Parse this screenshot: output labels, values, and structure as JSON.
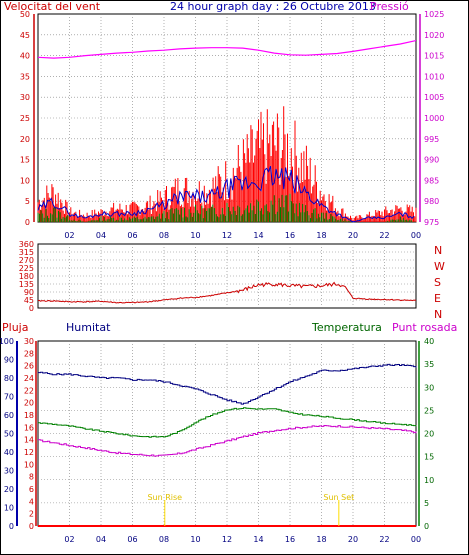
{
  "top_header": {
    "left_label": "Velocitat del vent",
    "title": "24 hour graph day : 26 Octubre 2013",
    "right_label": "Pressió"
  },
  "bottom_header": {
    "rain_label": "Pluja",
    "humidity_label": "Humitat",
    "temperature_label": "Temperatura",
    "dewpoint_label": "Punt rosada"
  },
  "colors": {
    "wind": "#ff0000",
    "gust": "#0000cc",
    "avg_wind": "#008000",
    "pressure": "#ff00ff",
    "direction": "#cc0000",
    "humidity": "#000080",
    "temperature": "#008000",
    "dewpoint": "#cc00cc",
    "rain": "#ff0000",
    "grid": "#808080",
    "sun": "#ffdd00"
  },
  "x_tick_labels": [
    "02",
    "04",
    "06",
    "08",
    "10",
    "12",
    "14",
    "16",
    "18",
    "20",
    "22",
    "00"
  ],
  "sun_events": [
    {
      "label": "Sun Rise",
      "hour": 8.05
    },
    {
      "label": "Sun Set",
      "hour": 19.1
    }
  ],
  "chart_data": [
    {
      "type": "line",
      "name": "wind-pressure",
      "x_unit": "hour",
      "xlim": [
        0,
        24
      ],
      "y_left": {
        "label": "Velocitat del vent",
        "ticks": [
          0,
          5,
          10,
          15,
          20,
          25,
          30,
          35,
          40,
          45,
          50
        ],
        "ylim": [
          0,
          50
        ]
      },
      "y_right": {
        "label": "Pressió",
        "ticks": [
          975,
          980,
          985,
          990,
          995,
          1000,
          1005,
          1010,
          1015,
          1020,
          1025
        ],
        "ylim": [
          975,
          1025
        ]
      },
      "series": [
        {
          "name": "Pressió",
          "axis": "right",
          "x": [
            0,
            1,
            2,
            3,
            4,
            5,
            6,
            7,
            8,
            9,
            10,
            11,
            12,
            13,
            14,
            15,
            16,
            17,
            18,
            19,
            20,
            21,
            22,
            23,
            24
          ],
          "values": [
            1014.6,
            1014.4,
            1014.6,
            1015.0,
            1015.3,
            1015.6,
            1015.8,
            1016.1,
            1016.3,
            1016.6,
            1016.8,
            1016.9,
            1016.9,
            1016.8,
            1016.3,
            1015.6,
            1015.2,
            1015.1,
            1015.3,
            1015.5,
            1016.0,
            1016.6,
            1017.2,
            1017.8,
            1018.6
          ]
        },
        {
          "name": "gust",
          "axis": "left",
          "x": [
            0,
            1,
            2,
            3,
            4,
            5,
            6,
            7,
            8,
            9,
            10,
            11,
            12,
            13,
            14,
            15,
            16,
            17,
            18,
            19,
            20,
            21,
            22,
            23,
            24
          ],
          "values": [
            6,
            9,
            3,
            2,
            3,
            4,
            4,
            5,
            7,
            10,
            9,
            10,
            13,
            17,
            21,
            23,
            22,
            16,
            9,
            4,
            1,
            2,
            3,
            4,
            3
          ]
        },
        {
          "name": "wind",
          "axis": "left",
          "x": [
            0,
            1,
            2,
            3,
            4,
            5,
            6,
            7,
            8,
            9,
            10,
            11,
            12,
            13,
            14,
            15,
            16,
            17,
            18,
            19,
            20,
            21,
            22,
            23,
            24
          ],
          "values": [
            3,
            5,
            2,
            1,
            2,
            2,
            2,
            3,
            4,
            6,
            6,
            6,
            8,
            9,
            10,
            11,
            10,
            7,
            4,
            2,
            0,
            1,
            1,
            2,
            1
          ]
        },
        {
          "name": "avg",
          "axis": "left",
          "x": [
            0,
            1,
            2,
            3,
            4,
            5,
            6,
            7,
            8,
            9,
            10,
            11,
            12,
            13,
            14,
            15,
            16,
            17,
            18,
            19,
            20,
            21,
            22,
            23,
            24
          ],
          "values": [
            2,
            3,
            1,
            0,
            1,
            1,
            1,
            1,
            2,
            3,
            3,
            3,
            4,
            4,
            5,
            6,
            5,
            3,
            2,
            1,
            0,
            0,
            0,
            1,
            0
          ]
        }
      ]
    },
    {
      "type": "scatter",
      "name": "wind-direction",
      "x_unit": "hour",
      "xlim": [
        0,
        24
      ],
      "ylim": [
        0,
        360
      ],
      "y_ticks": [
        0,
        45,
        90,
        135,
        180,
        225,
        270,
        315,
        360
      ],
      "y_tick_labels": [
        "0",
        "45",
        "90",
        "135",
        "180",
        "225",
        "270",
        "315",
        "360"
      ],
      "right_labels": [
        "N",
        "W",
        "S",
        "E",
        "N"
      ],
      "series": [
        {
          "name": "direction",
          "x": [
            0,
            1,
            2,
            3,
            4,
            5,
            6,
            7,
            8,
            9,
            10,
            11,
            12,
            13,
            14,
            15,
            16,
            17,
            18,
            19,
            19.5,
            20,
            21,
            22,
            23,
            24
          ],
          "values": [
            40,
            40,
            35,
            35,
            38,
            30,
            30,
            35,
            45,
            55,
            60,
            70,
            85,
            100,
            130,
            135,
            125,
            120,
            125,
            135,
            120,
            55,
            50,
            48,
            45,
            42
          ]
        }
      ]
    },
    {
      "type": "line",
      "name": "temp-humidity",
      "x_unit": "hour",
      "xlim": [
        0,
        24
      ],
      "y_humidity": {
        "label": "Humitat",
        "ticks": [
          0,
          10,
          20,
          30,
          40,
          50,
          60,
          70,
          80,
          90,
          100
        ],
        "ylim": [
          0,
          100
        ]
      },
      "y_rain": {
        "label": "Pluja",
        "ticks": [
          0,
          2,
          4,
          6,
          8,
          10,
          12,
          14,
          16,
          18,
          20,
          22,
          24,
          26,
          28,
          30
        ],
        "ylim": [
          0,
          30
        ]
      },
      "y_temp": {
        "label": "Temperatura",
        "ticks": [
          0,
          5,
          10,
          15,
          20,
          25,
          30,
          35,
          40
        ],
        "ylim": [
          0,
          40
        ]
      },
      "series": [
        {
          "name": "Humitat",
          "x": [
            0,
            1,
            2,
            3,
            4,
            5,
            6,
            7,
            8,
            9,
            10,
            11,
            12,
            13,
            14,
            15,
            16,
            17,
            18,
            19,
            20,
            21,
            22,
            23,
            24
          ],
          "values": [
            83,
            82,
            82,
            81,
            80,
            80,
            79,
            79,
            78,
            76,
            74,
            71,
            68,
            66,
            70,
            74,
            78,
            81,
            84,
            84,
            85,
            86,
            87,
            87,
            86
          ]
        },
        {
          "name": "Temperatura",
          "x": [
            0,
            1,
            2,
            3,
            4,
            5,
            6,
            7,
            8,
            9,
            10,
            11,
            12,
            13,
            14,
            15,
            16,
            17,
            18,
            19,
            20,
            21,
            22,
            23,
            24
          ],
          "values": [
            22.3,
            22.0,
            21.6,
            21.0,
            20.5,
            20.0,
            19.5,
            19.3,
            19.3,
            20.5,
            22.5,
            24.0,
            25.2,
            25.5,
            25.3,
            25.3,
            24.5,
            24.0,
            23.7,
            23.3,
            23.0,
            22.6,
            22.2,
            22.0,
            21.7
          ]
        },
        {
          "name": "Punt rosada",
          "x": [
            0,
            1,
            2,
            3,
            4,
            5,
            6,
            7,
            8,
            9,
            10,
            11,
            12,
            13,
            14,
            15,
            16,
            17,
            18,
            19,
            20,
            21,
            22,
            23,
            24
          ],
          "values": [
            18.5,
            18.0,
            17.4,
            16.9,
            16.3,
            15.8,
            15.5,
            15.3,
            15.2,
            15.7,
            16.6,
            17.5,
            18.4,
            19.3,
            20.1,
            20.7,
            21.1,
            21.4,
            21.6,
            21.6,
            21.4,
            21.2,
            21.0,
            20.7,
            20.3
          ]
        },
        {
          "name": "Pluja",
          "x": [
            0,
            24
          ],
          "values": [
            0,
            0
          ]
        }
      ]
    }
  ]
}
